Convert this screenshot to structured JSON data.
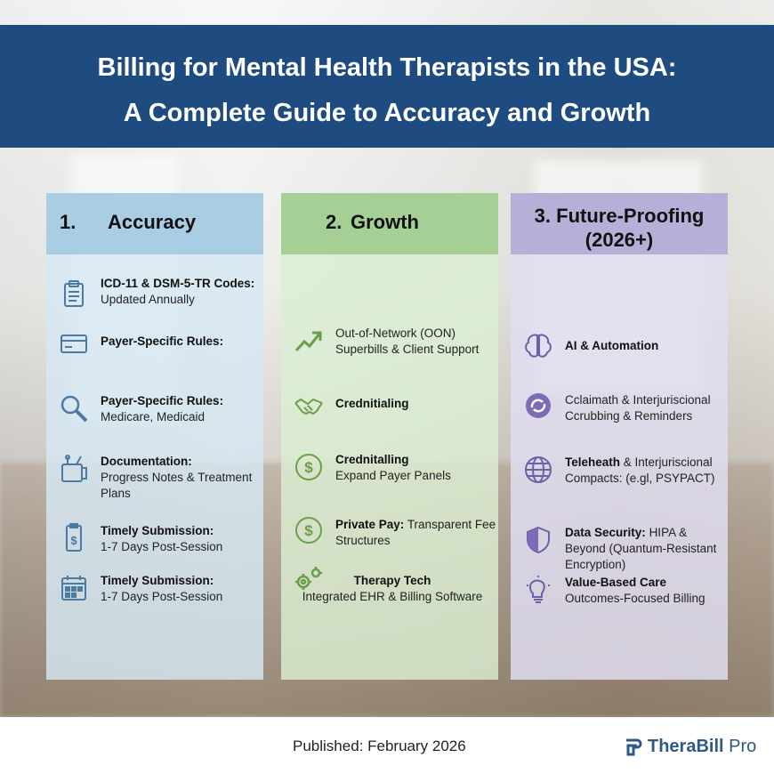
{
  "header": {
    "line1": "Billing for Mental Health Therapists in the USA:",
    "line2": "A Complete Guide to Accuracy and Growth"
  },
  "columns": [
    {
      "num": "1.",
      "title": "Accuracy",
      "items": [
        {
          "icon": "clipboard-icon",
          "bold": "ICD-11 & DSM-5-TR Codes:",
          "rest": "Updated Annually"
        },
        {
          "icon": "credit-card-icon",
          "bold": "Payer-Specific Rules:",
          "rest": ""
        },
        {
          "icon": "magnifier-icon",
          "bold": "Payer-Specific Rules:",
          "rest": "Medicare, Medicaid"
        },
        {
          "icon": "documentation-tools-icon",
          "bold": "Documentation:",
          "rest": "Progress Notes & Treatment Plans"
        },
        {
          "icon": "invoice-icon",
          "bold": "Timely Submission:",
          "rest": "1-7 Days Post-Session"
        },
        {
          "icon": "calendar-icon",
          "bold": "Timely Submission:",
          "rest": "1-7 Days Post-Session"
        }
      ]
    },
    {
      "num": "2.",
      "title": "Growth",
      "items": [
        {
          "icon": "trend-up-icon",
          "bold": "",
          "rest": "Out-of-Network (OON) Superbills & Client Support"
        },
        {
          "icon": "handshake-icon",
          "bold": "Crednitialing",
          "rest": ""
        },
        {
          "icon": "dollar-coin-icon",
          "bold": "Crednitalling",
          "rest": "Expand Payer Panels"
        },
        {
          "icon": "dollar-coin-icon",
          "bold": "Private Pay:",
          "rest": "Transparent Fee Structures"
        },
        {
          "icon": "gears-icon",
          "bold": "Therapy Tech",
          "rest": "Integrated EHR & Billing Software"
        }
      ]
    },
    {
      "num": "3.",
      "title": "Future-Proofing",
      "title2": "(2026+)",
      "items": [
        {
          "icon": "brain-icon",
          "bold": "AI & Automation",
          "rest": ""
        },
        {
          "icon": "sync-icon",
          "bold": "",
          "rest": "Cclaimath & Interjuriscional Ccrubbing & Reminders"
        },
        {
          "icon": "globe-icon",
          "bold": "Teleheath",
          "rest": "& Interjuriscional Compacts: (e.gl, PSYPACT)"
        },
        {
          "icon": "shield-icon",
          "bold": "Data Security:",
          "rest": "HIPA & Beyond (Quantum-Resistant Encryption)"
        },
        {
          "icon": "lightbulb-icon",
          "bold": "Value-Based Care",
          "rest": "Outcomes-Focused Billing"
        }
      ]
    }
  ],
  "footer": {
    "published": "Published: February 2026",
    "brand_main": "TheraBill",
    "brand_sub": " Pro"
  },
  "colors": {
    "header": "#1e4c80",
    "col1_head": "#a9cde3",
    "col2_head": "#a6cf96",
    "col3_head": "#b8afd9",
    "brand": "#2e5a85"
  }
}
